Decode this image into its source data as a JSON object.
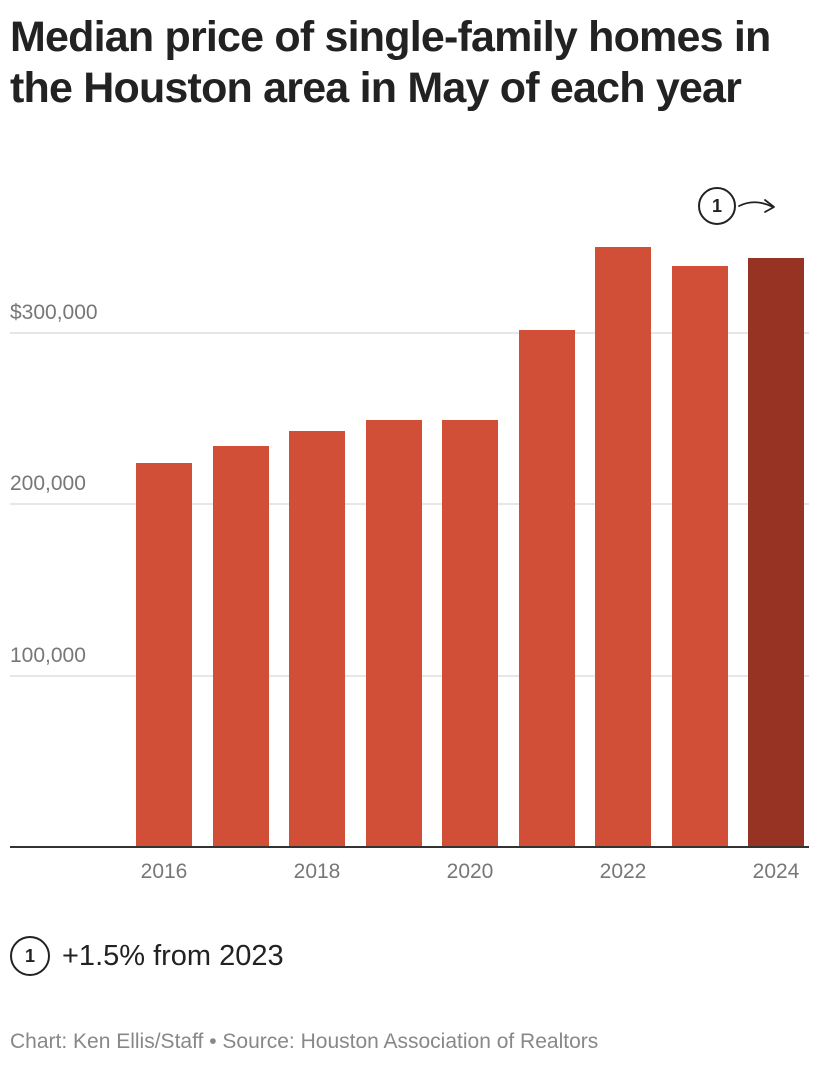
{
  "title": "Median price of single-family homes in the Houston area in May of each year",
  "colors": {
    "bar": "#d24f37",
    "bar_highlight": "#963322",
    "gridline": "#e6e6e6",
    "axis": "#333333"
  },
  "annotation": {
    "marker": "1",
    "text": "+1.5% from 2023"
  },
  "credit": "Chart: Ken Ellis/Staff • Source: Houston Association of Realtors",
  "chart_data": {
    "type": "bar",
    "title": "Median price of single-family homes in the Houston area in May of each year",
    "xlabel": "",
    "ylabel": "",
    "categories": [
      "2016",
      "2017",
      "2018",
      "2019",
      "2020",
      "2021",
      "2022",
      "2023",
      "2024"
    ],
    "values": [
      224000,
      234000,
      243000,
      249000,
      249000,
      302000,
      350000,
      339000,
      344000
    ],
    "highlight": "2024",
    "x_tick_labels": [
      "2016",
      "2018",
      "2020",
      "2022",
      "2024"
    ],
    "y_ticks": [
      100000,
      200000,
      300000
    ],
    "y_tick_labels": [
      "100,000",
      "200,000",
      "$300,000"
    ],
    "ylim": [
      0,
      380000
    ],
    "grid": true,
    "annotations": [
      {
        "x": "2024",
        "marker": "1",
        "text": "+1.5% from 2023"
      }
    ]
  }
}
